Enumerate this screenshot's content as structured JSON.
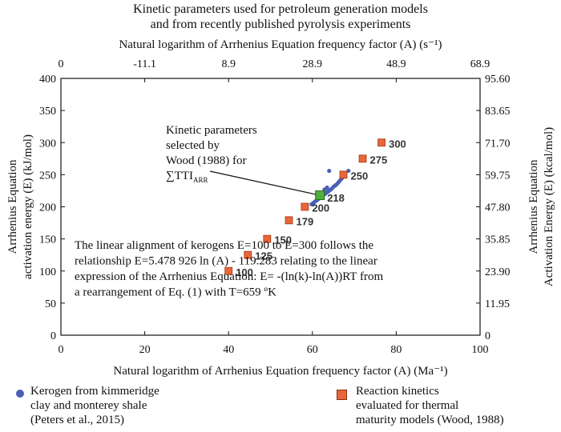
{
  "chart_data": {
    "type": "scatter",
    "title_lines": [
      "Kinetic parameters used for petroleum generation models",
      "and from recently published pyrolysis experiments"
    ],
    "top_axis_label": "Natural logarithm of Arrhenius Equation frequency factor (A) (s⁻¹)",
    "top_ticks": [
      "0",
      "-11.1",
      "8.9",
      "28.9",
      "48.9",
      "68.9"
    ],
    "xlabel": "Natural logarithm of Arrhenius Equation frequency factor (A) (Ma⁻¹",
    "xlabel_suffix": ")",
    "xlim": [
      0,
      100
    ],
    "x_ticks": [
      0,
      20,
      40,
      60,
      80,
      100
    ],
    "ylabel_lines": [
      "Arrhenius Equation",
      "activation energy (E) (kJ/mol)"
    ],
    "ylim": [
      0,
      400
    ],
    "y_ticks": [
      0,
      50,
      100,
      150,
      200,
      250,
      300,
      350,
      400
    ],
    "right_axis_label_lines": [
      "Arrhenius Equation",
      "Activation Energy (E) (kcal/mol)"
    ],
    "right_ticks": [
      "0",
      "11.95",
      "23.90",
      "35.85",
      "47.80",
      "59.75",
      "71.70",
      "83.65",
      "95.60"
    ],
    "grid": false,
    "series": [
      {
        "name": "Reaction kinetics evaluated for thermal maturity models (Wood, 1988)",
        "marker": "square",
        "color": "#e8663a",
        "points": [
          {
            "x": 40.0,
            "y": 100,
            "label": "100"
          },
          {
            "x": 44.6,
            "y": 125,
            "label": "125"
          },
          {
            "x": 49.2,
            "y": 150,
            "label": "150"
          },
          {
            "x": 54.4,
            "y": 179,
            "label": "179"
          },
          {
            "x": 58.2,
            "y": 200,
            "label": "200"
          },
          {
            "x": 67.4,
            "y": 250,
            "label": "250"
          },
          {
            "x": 72.0,
            "y": 275,
            "label": "275"
          },
          {
            "x": 76.5,
            "y": 300,
            "label": "300"
          }
        ]
      },
      {
        "name": "Kerogen from kimmeridge clay and monterey shale (Peters et al., 2015)",
        "marker": "circle",
        "color": "#4a5fb5",
        "points": [
          {
            "x": 59.8,
            "y": 204
          },
          {
            "x": 60.2,
            "y": 206
          },
          {
            "x": 60.6,
            "y": 208
          },
          {
            "x": 61.0,
            "y": 210
          },
          {
            "x": 61.4,
            "y": 212
          },
          {
            "x": 61.8,
            "y": 214
          },
          {
            "x": 62.2,
            "y": 216
          },
          {
            "x": 62.6,
            "y": 218
          },
          {
            "x": 63.0,
            "y": 220
          },
          {
            "x": 63.4,
            "y": 222
          },
          {
            "x": 63.8,
            "y": 224
          },
          {
            "x": 64.2,
            "y": 226
          },
          {
            "x": 64.6,
            "y": 228
          },
          {
            "x": 65.0,
            "y": 231
          },
          {
            "x": 65.4,
            "y": 233
          },
          {
            "x": 65.8,
            "y": 235
          },
          {
            "x": 66.2,
            "y": 238
          },
          {
            "x": 66.6,
            "y": 241
          },
          {
            "x": 67.0,
            "y": 244
          },
          {
            "x": 67.4,
            "y": 247
          },
          {
            "x": 62.9,
            "y": 227
          },
          {
            "x": 63.5,
            "y": 230
          },
          {
            "x": 64.0,
            "y": 256
          },
          {
            "x": 68.6,
            "y": 256
          }
        ]
      }
    ],
    "highlight": {
      "x": 61.8,
      "y": 218,
      "label": "218",
      "color": "#4caf3a"
    },
    "annotation": {
      "lines": [
        "Kinetic parameters",
        "selected by",
        "Wood (1988) for"
      ],
      "symbol_line": "∑TTI",
      "symbol_sub": "ARR"
    },
    "note_lines": [
      "The linear alignment of kerogens E=100 to E=300 follows the",
      "relationship E=5.478 926 ln (A) - 119.283 relating to the linear",
      "expression of the Arrhenius Equation: E= -(ln(k)-ln(A))RT from",
      "a rearrangement of Eq. (1) with T=659 ºK"
    ]
  },
  "legend": {
    "kerogen_text": "Kerogen from kimmeridge\nclay and monterey shale\n(Peters et al., 2015)",
    "kerogen_color": "#4a5fb5",
    "reaction_text": "Reaction kinetics\nevaluated for thermal\nmaturity models (Wood, 1988)",
    "reaction_color": "#e8663a"
  }
}
